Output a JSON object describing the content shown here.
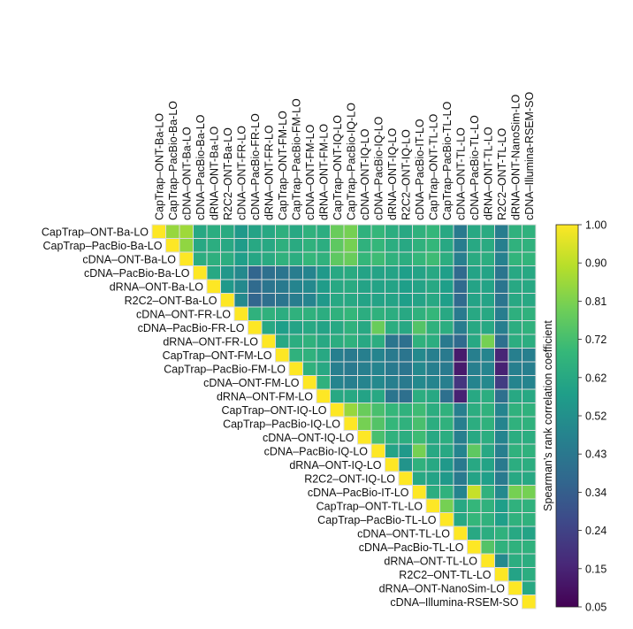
{
  "chart_data": {
    "type": "heatmap",
    "title": "",
    "layout": "upper-triangular",
    "labels": [
      "CapTrap–ONT-Ba-LO",
      "CapTrap–PacBio-Ba-LO",
      "cDNA–ONT-Ba-LO",
      "cDNA–PacBio-Ba-LO",
      "dRNA–ONT-Ba-LO",
      "R2C2–ONT-Ba-LO",
      "cDNA–ONT-FR-LO",
      "cDNA–PacBio-FR-LO",
      "dRNA–ONT-FR-LO",
      "CapTrap–ONT-FM-LO",
      "CapTrap–PacBio-FM-LO",
      "cDNA–ONT-FM-LO",
      "dRNA–ONT-FM-LO",
      "CapTrap–ONT-IQ-LO",
      "CapTrap–PacBio-IQ-LO",
      "cDNA–ONT-IQ-LO",
      "cDNA–PacBio-IQ-LO",
      "dRNA–ONT-IQ-LO",
      "R2C2–ONT-IQ-LO",
      "cDNA–PacBio-IT-LO",
      "CapTrap–ONT-TL-LO",
      "CapTrap–PacBio-TL-LO",
      "cDNA–ONT-TL-LO",
      "cDNA–PacBio-TL-LO",
      "dRNA–ONT-TL-LO",
      "R2C2–ONT-TL-LO",
      "dRNA–ONT-NanoSim-LO",
      "cDNA–Illumina-RSEM-SO"
    ],
    "values": [
      [
        1.0,
        0.85,
        0.86,
        0.62,
        0.64,
        0.63,
        0.56,
        0.6,
        0.62,
        0.65,
        0.62,
        0.66,
        0.64,
        0.78,
        0.8,
        0.66,
        0.68,
        0.64,
        0.62,
        0.66,
        0.68,
        0.62,
        0.44,
        0.62,
        0.63,
        0.45,
        0.66,
        0.66
      ],
      [
        null,
        1.0,
        0.84,
        0.62,
        0.64,
        0.62,
        0.57,
        0.62,
        0.62,
        0.65,
        0.63,
        0.66,
        0.64,
        0.76,
        0.8,
        0.66,
        0.68,
        0.64,
        0.62,
        0.66,
        0.68,
        0.62,
        0.45,
        0.62,
        0.63,
        0.46,
        0.66,
        0.66
      ],
      [
        null,
        null,
        1.0,
        0.64,
        0.65,
        0.64,
        0.58,
        0.61,
        0.63,
        0.66,
        0.64,
        0.68,
        0.66,
        0.76,
        0.78,
        0.68,
        0.7,
        0.66,
        0.64,
        0.68,
        0.7,
        0.64,
        0.46,
        0.63,
        0.64,
        0.47,
        0.67,
        0.67
      ],
      [
        null,
        null,
        null,
        1.0,
        0.62,
        0.55,
        0.5,
        0.36,
        0.4,
        0.42,
        0.45,
        0.48,
        0.56,
        0.62,
        0.63,
        0.6,
        0.6,
        0.6,
        0.58,
        0.6,
        0.62,
        0.58,
        0.38,
        0.6,
        0.6,
        0.42,
        0.62,
        0.62
      ],
      [
        null,
        null,
        null,
        null,
        1.0,
        0.56,
        0.5,
        0.38,
        0.42,
        0.44,
        0.48,
        0.5,
        0.57,
        0.62,
        0.63,
        0.6,
        0.6,
        0.6,
        0.58,
        0.6,
        0.62,
        0.58,
        0.38,
        0.6,
        0.6,
        0.42,
        0.62,
        0.62
      ],
      [
        null,
        null,
        null,
        null,
        null,
        1.0,
        0.5,
        0.36,
        0.4,
        0.42,
        0.45,
        0.48,
        0.56,
        0.62,
        0.62,
        0.6,
        0.6,
        0.6,
        0.58,
        0.6,
        0.62,
        0.58,
        0.38,
        0.6,
        0.6,
        0.42,
        0.62,
        0.62
      ],
      [
        null,
        null,
        null,
        null,
        null,
        null,
        1.0,
        0.66,
        0.66,
        0.64,
        0.66,
        0.66,
        0.64,
        0.66,
        0.68,
        0.64,
        0.66,
        0.64,
        0.62,
        0.66,
        0.68,
        0.62,
        0.44,
        0.62,
        0.62,
        0.45,
        0.65,
        0.66
      ],
      [
        null,
        null,
        null,
        null,
        null,
        null,
        null,
        1.0,
        0.62,
        0.58,
        0.6,
        0.62,
        0.6,
        0.62,
        0.66,
        0.62,
        0.78,
        0.64,
        0.62,
        0.74,
        0.66,
        0.64,
        0.45,
        0.62,
        0.62,
        0.46,
        0.64,
        0.66
      ],
      [
        null,
        null,
        null,
        null,
        null,
        null,
        null,
        null,
        1.0,
        0.62,
        0.64,
        0.66,
        0.62,
        0.64,
        0.66,
        0.62,
        0.64,
        0.42,
        0.4,
        0.66,
        0.64,
        0.44,
        0.38,
        0.62,
        0.8,
        0.4,
        0.64,
        0.64
      ],
      [
        null,
        null,
        null,
        null,
        null,
        null,
        null,
        null,
        null,
        1.0,
        0.66,
        0.66,
        0.62,
        0.46,
        0.44,
        0.46,
        0.48,
        0.44,
        0.42,
        0.5,
        0.46,
        0.44,
        0.12,
        0.46,
        0.48,
        0.15,
        0.46,
        0.46
      ],
      [
        null,
        null,
        null,
        null,
        null,
        null,
        null,
        null,
        null,
        null,
        1.0,
        0.66,
        0.62,
        0.46,
        0.44,
        0.46,
        0.48,
        0.44,
        0.42,
        0.5,
        0.46,
        0.44,
        0.12,
        0.46,
        0.48,
        0.14,
        0.46,
        0.46
      ],
      [
        null,
        null,
        null,
        null,
        null,
        null,
        null,
        null,
        null,
        null,
        null,
        1.0,
        0.66,
        0.48,
        0.46,
        0.48,
        0.5,
        0.46,
        0.44,
        0.5,
        0.48,
        0.46,
        0.2,
        0.48,
        0.5,
        0.22,
        0.48,
        0.48
      ],
      [
        null,
        null,
        null,
        null,
        null,
        null,
        null,
        null,
        null,
        null,
        null,
        null,
        1.0,
        0.62,
        0.62,
        0.6,
        0.62,
        0.42,
        0.4,
        0.64,
        0.62,
        0.4,
        0.14,
        0.62,
        0.64,
        0.4,
        0.62,
        0.62
      ],
      [
        null,
        null,
        null,
        null,
        null,
        null,
        null,
        null,
        null,
        null,
        null,
        null,
        null,
        1.0,
        0.85,
        0.78,
        0.72,
        0.68,
        0.66,
        0.7,
        0.64,
        0.66,
        0.46,
        0.64,
        0.66,
        0.48,
        0.66,
        0.66
      ],
      [
        null,
        null,
        null,
        null,
        null,
        null,
        null,
        null,
        null,
        null,
        null,
        null,
        null,
        null,
        1.0,
        0.8,
        0.74,
        0.68,
        0.66,
        0.72,
        0.64,
        0.66,
        0.46,
        0.64,
        0.66,
        0.48,
        0.66,
        0.66
      ],
      [
        null,
        null,
        null,
        null,
        null,
        null,
        null,
        null,
        null,
        null,
        null,
        null,
        null,
        null,
        null,
        1.0,
        0.72,
        0.66,
        0.64,
        0.7,
        0.62,
        0.64,
        0.46,
        0.62,
        0.64,
        0.48,
        0.64,
        0.64
      ],
      [
        null,
        null,
        null,
        null,
        null,
        null,
        null,
        null,
        null,
        null,
        null,
        null,
        null,
        null,
        null,
        null,
        1.0,
        0.6,
        0.56,
        0.8,
        0.62,
        0.62,
        0.48,
        0.76,
        0.62,
        0.46,
        0.66,
        0.66
      ],
      [
        null,
        null,
        null,
        null,
        null,
        null,
        null,
        null,
        null,
        null,
        null,
        null,
        null,
        null,
        null,
        null,
        null,
        1.0,
        0.54,
        0.66,
        0.62,
        0.56,
        0.44,
        0.62,
        0.6,
        0.44,
        0.64,
        0.64
      ],
      [
        null,
        null,
        null,
        null,
        null,
        null,
        null,
        null,
        null,
        null,
        null,
        null,
        null,
        null,
        null,
        null,
        null,
        null,
        1.0,
        0.62,
        0.6,
        0.56,
        0.44,
        0.6,
        0.58,
        0.44,
        0.62,
        0.62
      ],
      [
        null,
        null,
        null,
        null,
        null,
        null,
        null,
        null,
        null,
        null,
        null,
        null,
        null,
        null,
        null,
        null,
        null,
        null,
        null,
        1.0,
        0.64,
        0.66,
        0.48,
        0.92,
        0.66,
        0.5,
        0.8,
        0.8
      ],
      [
        null,
        null,
        null,
        null,
        null,
        null,
        null,
        null,
        null,
        null,
        null,
        null,
        null,
        null,
        null,
        null,
        null,
        null,
        null,
        null,
        1.0,
        0.8,
        0.62,
        0.68,
        0.66,
        0.58,
        0.66,
        0.66
      ],
      [
        null,
        null,
        null,
        null,
        null,
        null,
        null,
        null,
        null,
        null,
        null,
        null,
        null,
        null,
        null,
        null,
        null,
        null,
        null,
        null,
        null,
        1.0,
        0.62,
        0.68,
        0.66,
        0.58,
        0.66,
        0.66
      ],
      [
        null,
        null,
        null,
        null,
        null,
        null,
        null,
        null,
        null,
        null,
        null,
        null,
        null,
        null,
        null,
        null,
        null,
        null,
        null,
        null,
        null,
        null,
        1.0,
        0.62,
        0.64,
        0.66,
        0.62,
        0.6
      ],
      [
        null,
        null,
        null,
        null,
        null,
        null,
        null,
        null,
        null,
        null,
        null,
        null,
        null,
        null,
        null,
        null,
        null,
        null,
        null,
        null,
        null,
        null,
        null,
        1.0,
        0.74,
        0.66,
        0.66,
        0.66
      ],
      [
        null,
        null,
        null,
        null,
        null,
        null,
        null,
        null,
        null,
        null,
        null,
        null,
        null,
        null,
        null,
        null,
        null,
        null,
        null,
        null,
        null,
        null,
        null,
        null,
        1.0,
        0.5,
        0.64,
        0.64
      ],
      [
        null,
        null,
        null,
        null,
        null,
        null,
        null,
        null,
        null,
        null,
        null,
        null,
        null,
        null,
        null,
        null,
        null,
        null,
        null,
        null,
        null,
        null,
        null,
        null,
        null,
        1.0,
        0.6,
        0.64
      ],
      [
        null,
        null,
        null,
        null,
        null,
        null,
        null,
        null,
        null,
        null,
        null,
        null,
        null,
        null,
        null,
        null,
        null,
        null,
        null,
        null,
        null,
        null,
        null,
        null,
        null,
        null,
        1.0,
        0.62
      ],
      [
        null,
        null,
        null,
        null,
        null,
        null,
        null,
        null,
        null,
        null,
        null,
        null,
        null,
        null,
        null,
        null,
        null,
        null,
        null,
        null,
        null,
        null,
        null,
        null,
        null,
        null,
        null,
        1.0
      ]
    ],
    "colorbar": {
      "label": "Spearman’s rank correlation coefficient",
      "min": 0.05,
      "max": 1.0,
      "ticks": [
        "1.00",
        "0.90",
        "0.81",
        "0.72",
        "0.62",
        "0.52",
        "0.43",
        "0.34",
        "0.24",
        "0.15",
        "0.05"
      ],
      "colormap": "viridis"
    },
    "colors": {
      "cell_border": "#dcdcdc",
      "viridis": [
        "#440154",
        "#482878",
        "#3e4989",
        "#31688e",
        "#26828e",
        "#1f9e89",
        "#35b779",
        "#6ece58",
        "#b5de2b",
        "#fde725"
      ]
    }
  }
}
